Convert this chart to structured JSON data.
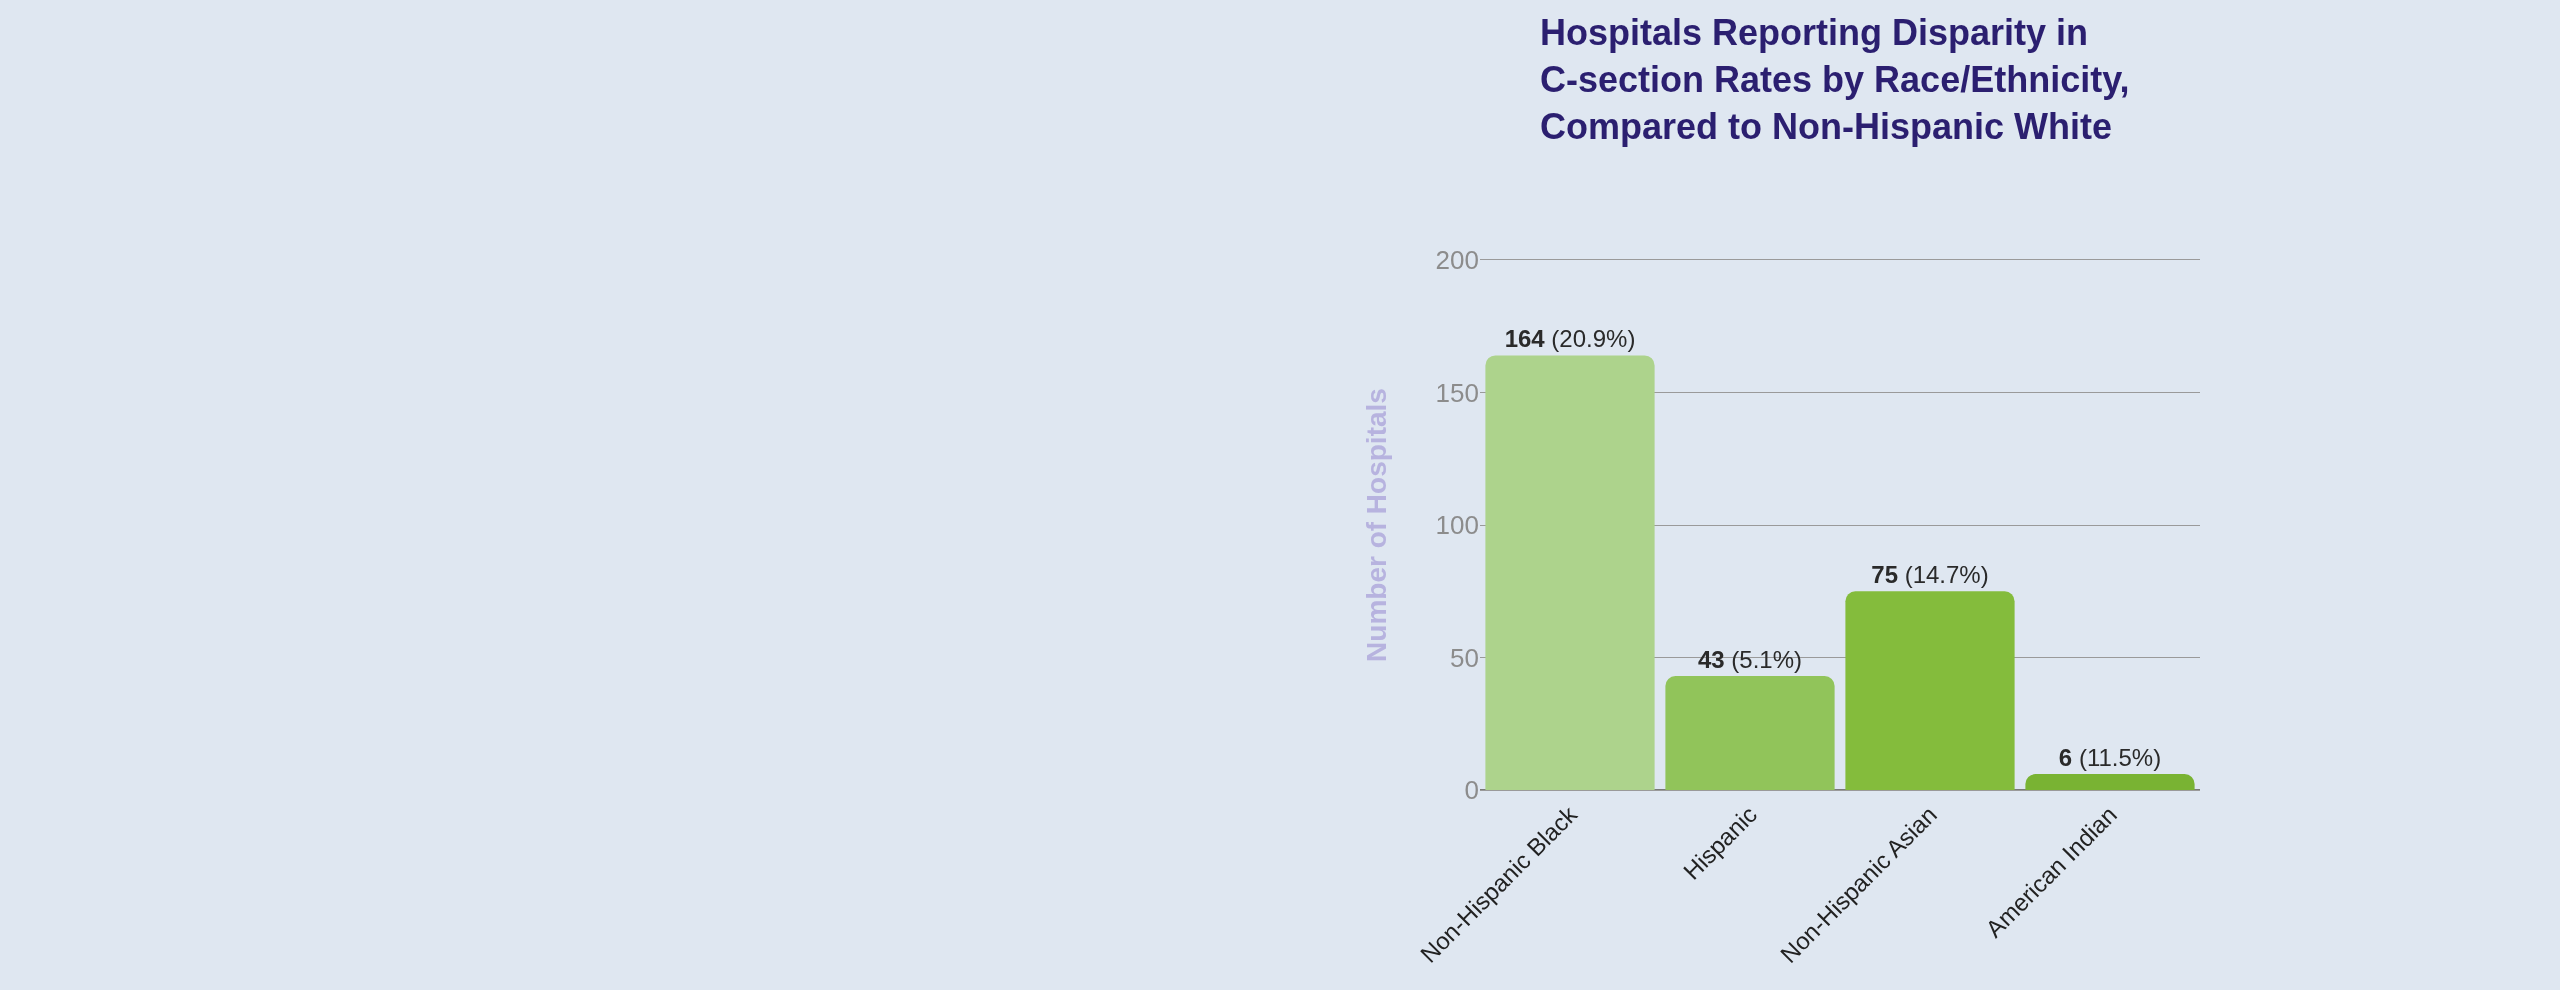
{
  "chart_data": {
    "type": "bar",
    "title": "Hospitals Reporting Disparity in C-section Rates by Race/Ethnicity, Compared to Non-Hispanic White",
    "ylabel": "Number of Hospitals",
    "categories": [
      "Non-Hispanic Black",
      "Hispanic",
      "Non-Hispanic Asian",
      "American Indian"
    ],
    "values": [
      164,
      43,
      75,
      6
    ],
    "colors": [
      "#add38c",
      "#91c45a",
      "#84bc3c",
      "#79b333"
    ],
    "value_labels": [
      "164 (20.9%)",
      "43 (5.1%)",
      "75 (14.7%)",
      "6 (11.5%)"
    ],
    "ylim": [
      0,
      200
    ],
    "yticks": [
      0,
      50,
      100,
      150,
      200
    ],
    "grid": "y"
  }
}
